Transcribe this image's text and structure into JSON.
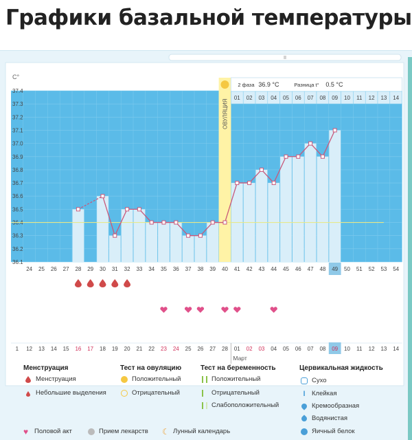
{
  "page_title": "Графики базальной температуры",
  "header_info": {
    "phase_label": "2 фаза",
    "phase_value": "36.9 °C",
    "diff_label": "Разница t°",
    "diff_value": "0.5 °C"
  },
  "ovulation_label": "ОВУЛЯЦИЯ",
  "month_label": "Март",
  "colors": {
    "chart_bg": "#5bbbe8",
    "bar": "#d9eef9",
    "line": "#c8587a",
    "ovulation": "#fff3a6",
    "coverline": "#e8e88a",
    "heart": "#e0508a",
    "drop": "#d04a4a",
    "highlight_day": "#8fc9e8"
  },
  "chart_data": {
    "type": "line",
    "ylabel": "C°",
    "ylim": [
      36.1,
      37.4
    ],
    "y_ticks": [
      "37.4",
      "37.3",
      "37.2",
      "37.1",
      "37.0",
      "36.9",
      "36.8",
      "36.7",
      "36.6",
      "36.5",
      "36.4",
      "36.3",
      "36.2",
      "36.1"
    ],
    "cycle_days": [
      "",
      "24",
      "25",
      "26",
      "27",
      "28",
      "29",
      "30",
      "31",
      "32",
      "33",
      "34",
      "35",
      "36",
      "37",
      "38",
      "39",
      "40",
      "41",
      "42",
      "43",
      "44",
      "45",
      "46",
      "47",
      "48",
      "49",
      "50",
      "51",
      "52",
      "53",
      "54"
    ],
    "dates": [
      "1",
      "12",
      "13",
      "14",
      "15",
      "16",
      "17",
      "18",
      "19",
      "20",
      "21",
      "22",
      "23",
      "24",
      "25",
      "26",
      "27",
      "28",
      "01",
      "02",
      "03",
      "04",
      "05",
      "06",
      "07",
      "08",
      "09",
      "10",
      "11",
      "12",
      "13",
      "14"
    ],
    "red_dates": [
      5,
      6,
      12,
      13,
      19,
      20,
      26
    ],
    "post_ovulation_days": [
      "01",
      "02",
      "03",
      "04",
      "05",
      "06",
      "07",
      "08",
      "09",
      "10",
      "11",
      "12",
      "13",
      "14"
    ],
    "highlight_index": 26,
    "ovulation_index": 17,
    "coverline": 36.4,
    "series": [
      {
        "values": [
          null,
          null,
          null,
          null,
          null,
          36.5,
          null,
          36.6,
          36.3,
          36.5,
          36.5,
          36.4,
          36.4,
          36.4,
          36.3,
          36.3,
          36.4,
          36.4,
          36.7,
          36.7,
          36.8,
          36.7,
          36.9,
          36.9,
          37.0,
          36.9,
          37.1,
          null,
          null,
          null,
          null,
          null
        ],
        "dashed_segments": [
          [
            5,
            7
          ]
        ]
      }
    ],
    "menstruation_indices": [
      5,
      6,
      7,
      8,
      9
    ],
    "intercourse_indices": [
      12,
      14,
      15,
      17,
      18,
      21
    ]
  },
  "legend": {
    "menstruation": {
      "title": "Менструация",
      "items": [
        "Менструация",
        "Небольшие выделения"
      ]
    },
    "ovulation_test": {
      "title": "Тест на овуляцию",
      "items": [
        "Положительный",
        "Отрицательный"
      ]
    },
    "pregnancy_test": {
      "title": "Тест на беременность",
      "items": [
        "Положительный",
        "Отрицательный",
        "Слабоположительный"
      ]
    },
    "cervical": {
      "title": "Цервикальная жидкость",
      "items": [
        "Сухо",
        "Клейкая",
        "Кремообразная",
        "Водянистая",
        "Яичный белок"
      ]
    },
    "bottom": [
      "Половой акт",
      "Прием лекарств",
      "Лунный календарь"
    ]
  }
}
